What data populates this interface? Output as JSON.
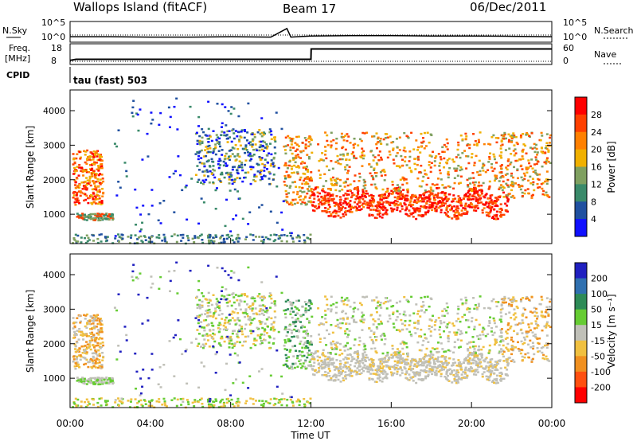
{
  "header": {
    "station": "Wallops Island (fitACF)",
    "beam": "Beam 17",
    "date": "06/Dec/2011"
  },
  "top_panel": {
    "nsky_label": "N.Sky",
    "nsearch_label": "N.Search",
    "nave_label": "Nave",
    "freq_label_1": "Freq.",
    "freq_label_2": "[MHz]",
    "cpid_label": "CPID",
    "cpid_value": "tau (fast) 503",
    "nsky_ticks": [
      "10^5",
      "10^0"
    ],
    "nsearch_ticks": [
      "10^5",
      "10^0"
    ],
    "freq_ticks": [
      "18",
      "8"
    ],
    "nave_ticks": [
      "60",
      "0"
    ]
  },
  "colorbars": {
    "power": {
      "label": "Power [dB]",
      "ticks": [
        "28",
        "24",
        "20",
        "16",
        "12",
        "8",
        "4"
      ],
      "colors": [
        "#ff0000",
        "#ff4000",
        "#ff8000",
        "#f0b000",
        "#7fa060",
        "#3a8a6a",
        "#2050a0",
        "#1010ff"
      ]
    },
    "velocity": {
      "label": "Velocity [m s⁻¹]",
      "ticks": [
        "200",
        "100",
        "50",
        "15",
        "-15",
        "-50",
        "-100",
        "-200"
      ],
      "colors": [
        "#2020c0",
        "#3070b0",
        "#2e8b57",
        "#66cc33",
        "#c0c0b8",
        "#f0c040",
        "#f09020",
        "#ff5010",
        "#ff0000"
      ]
    }
  },
  "chart_data": [
    {
      "type": "line",
      "name": "nsky-nsearch",
      "x": [
        0,
        2,
        4,
        6,
        8,
        10,
        10.8,
        11,
        12,
        14,
        16,
        18,
        20,
        22,
        24
      ],
      "y": [
        1.4,
        1.4,
        1.3,
        1.3,
        1.4,
        1.3,
        3.5,
        1.3,
        1.6,
        1.7,
        1.7,
        1.6,
        1.6,
        1.5,
        1.4
      ],
      "xlim": [
        0,
        24
      ]
    },
    {
      "type": "line",
      "name": "frequency",
      "x": [
        0,
        0.3,
        12,
        12.01,
        24
      ],
      "y": [
        10,
        10.5,
        10.5,
        15.5,
        15.5
      ],
      "ylim": [
        8,
        18
      ]
    },
    {
      "type": "heatmap",
      "name": "power",
      "xlabel": "",
      "ylabel": "Slant Range [km]",
      "xlim": [
        0,
        24
      ],
      "ylim": [
        150,
        4600
      ],
      "yticks": [
        1000,
        2000,
        3000,
        4000
      ],
      "colorbar": "Power [dB]"
    },
    {
      "type": "heatmap",
      "name": "velocity",
      "xlabel": "Time UT",
      "ylabel": "Slant Range [km]",
      "xlim": [
        0,
        24
      ],
      "ylim": [
        150,
        4600
      ],
      "xticks": [
        "00:00",
        "04:00",
        "08:00",
        "12:00",
        "16:00",
        "20:00",
        "00:00"
      ],
      "yticks": [
        1000,
        2000,
        3000,
        4000
      ],
      "colorbar": "Velocity [m s⁻¹]"
    }
  ]
}
